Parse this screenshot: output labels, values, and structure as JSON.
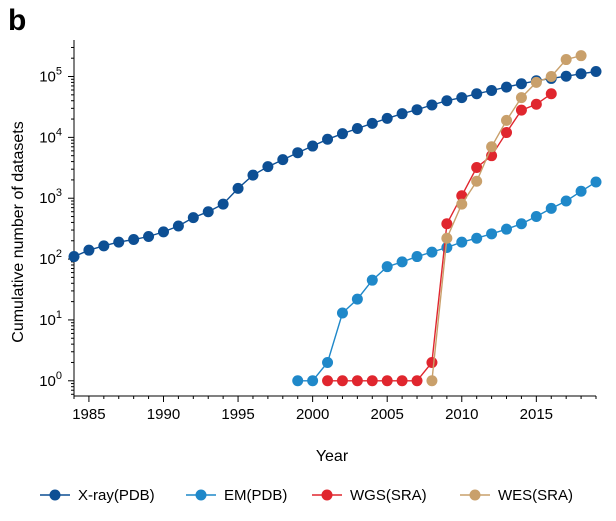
{
  "panel_label": "b",
  "chart_data": {
    "type": "line",
    "title": "",
    "xlabel": "Year",
    "ylabel": "Cumulative number of datasets",
    "xlim": [
      1984,
      2019
    ],
    "ylim_log10": [
      -0.25,
      5.6
    ],
    "y_scale": "log",
    "x_ticks": [
      1985,
      1990,
      1995,
      2000,
      2005,
      2010,
      2015
    ],
    "y_ticks": [
      {
        "exp": 0,
        "base": "10",
        "sup": "0"
      },
      {
        "exp": 1,
        "base": "10",
        "sup": "1"
      },
      {
        "exp": 2,
        "base": "10",
        "sup": "2"
      },
      {
        "exp": 3,
        "base": "10",
        "sup": "3"
      },
      {
        "exp": 4,
        "base": "10",
        "sup": "4"
      },
      {
        "exp": 5,
        "base": "10",
        "sup": "5"
      }
    ],
    "grid": false,
    "legend": "bottom",
    "series": [
      {
        "name": "X-ray(PDB)",
        "color": "#0d4f94",
        "x": [
          1984,
          1985,
          1986,
          1987,
          1988,
          1989,
          1990,
          1991,
          1992,
          1993,
          1994,
          1995,
          1996,
          1997,
          1998,
          1999,
          2000,
          2001,
          2002,
          2003,
          2004,
          2005,
          2006,
          2007,
          2008,
          2009,
          2010,
          2011,
          2012,
          2013,
          2014,
          2015,
          2016,
          2017,
          2018,
          2019
        ],
        "y": [
          110,
          140,
          165,
          190,
          210,
          235,
          280,
          350,
          480,
          600,
          800,
          1450,
          2400,
          3300,
          4300,
          5600,
          7200,
          9300,
          11500,
          14000,
          17000,
          20500,
          24500,
          28500,
          34000,
          40000,
          45000,
          52000,
          59000,
          67000,
          76000,
          85000,
          93000,
          101000,
          111000,
          121000
        ]
      },
      {
        "name": "EM(PDB)",
        "color": "#1f88c9",
        "x": [
          1999,
          2000,
          2001,
          2002,
          2003,
          2004,
          2005,
          2006,
          2007,
          2008,
          2009,
          2010,
          2011,
          2012,
          2013,
          2014,
          2015,
          2016,
          2017,
          2018,
          2019
        ],
        "y": [
          1,
          1,
          2,
          13,
          22,
          45,
          75,
          90,
          110,
          130,
          155,
          190,
          220,
          260,
          310,
          380,
          500,
          680,
          900,
          1300,
          1850
        ]
      },
      {
        "name": "WGS(SRA)",
        "color": "#e0262e",
        "x": [
          2001,
          2002,
          2003,
          2004,
          2005,
          2006,
          2007,
          2008,
          2009,
          2010,
          2011,
          2012,
          2013,
          2014,
          2015,
          2016
        ],
        "y": [
          1,
          1,
          1,
          1,
          1,
          1,
          1,
          2,
          380,
          1100,
          3200,
          5000,
          12000,
          28000,
          35000,
          52000
        ]
      },
      {
        "name": "WES(SRA)",
        "color": "#c9a06b",
        "x": [
          2008,
          2009,
          2010,
          2011,
          2012,
          2013,
          2014,
          2015,
          2016,
          2017,
          2018
        ],
        "y": [
          1,
          220,
          800,
          1900,
          7000,
          19000,
          45000,
          80000,
          100000,
          190000,
          220000
        ]
      }
    ]
  }
}
